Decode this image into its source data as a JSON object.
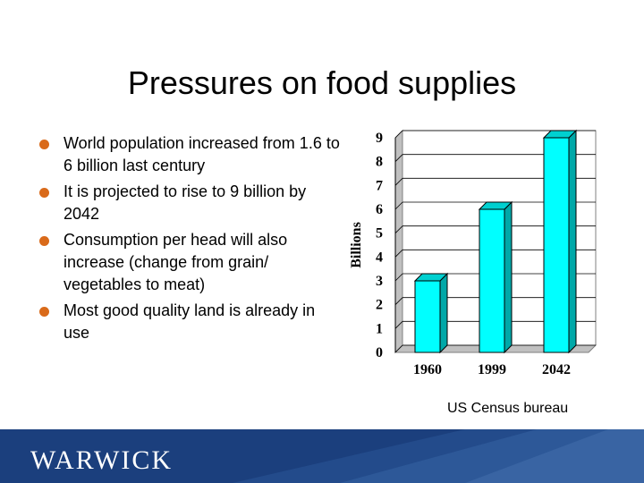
{
  "slide": {
    "title": "Pressures on food supplies",
    "bullets": [
      "World population increased from 1.6 to 6 billion last century",
      "It is projected to rise to 9 billion by 2042",
      "Consumption per head will also increase (change from grain/ vegetables to meat)",
      "Most good quality land is already in use"
    ],
    "source": "US Census bureau",
    "footer_logo": "WARWICK"
  },
  "chart_data": {
    "type": "bar",
    "categories": [
      "1960",
      "1999",
      "2042"
    ],
    "values": [
      3,
      6,
      9
    ],
    "ylabel": "Billions",
    "ylim": [
      0,
      9
    ],
    "yticks": [
      "0",
      "1",
      "2",
      "3",
      "4",
      "5",
      "6",
      "7",
      "8",
      "9"
    ],
    "grid": true,
    "bar_color": "#00ffff",
    "style": "3d"
  }
}
